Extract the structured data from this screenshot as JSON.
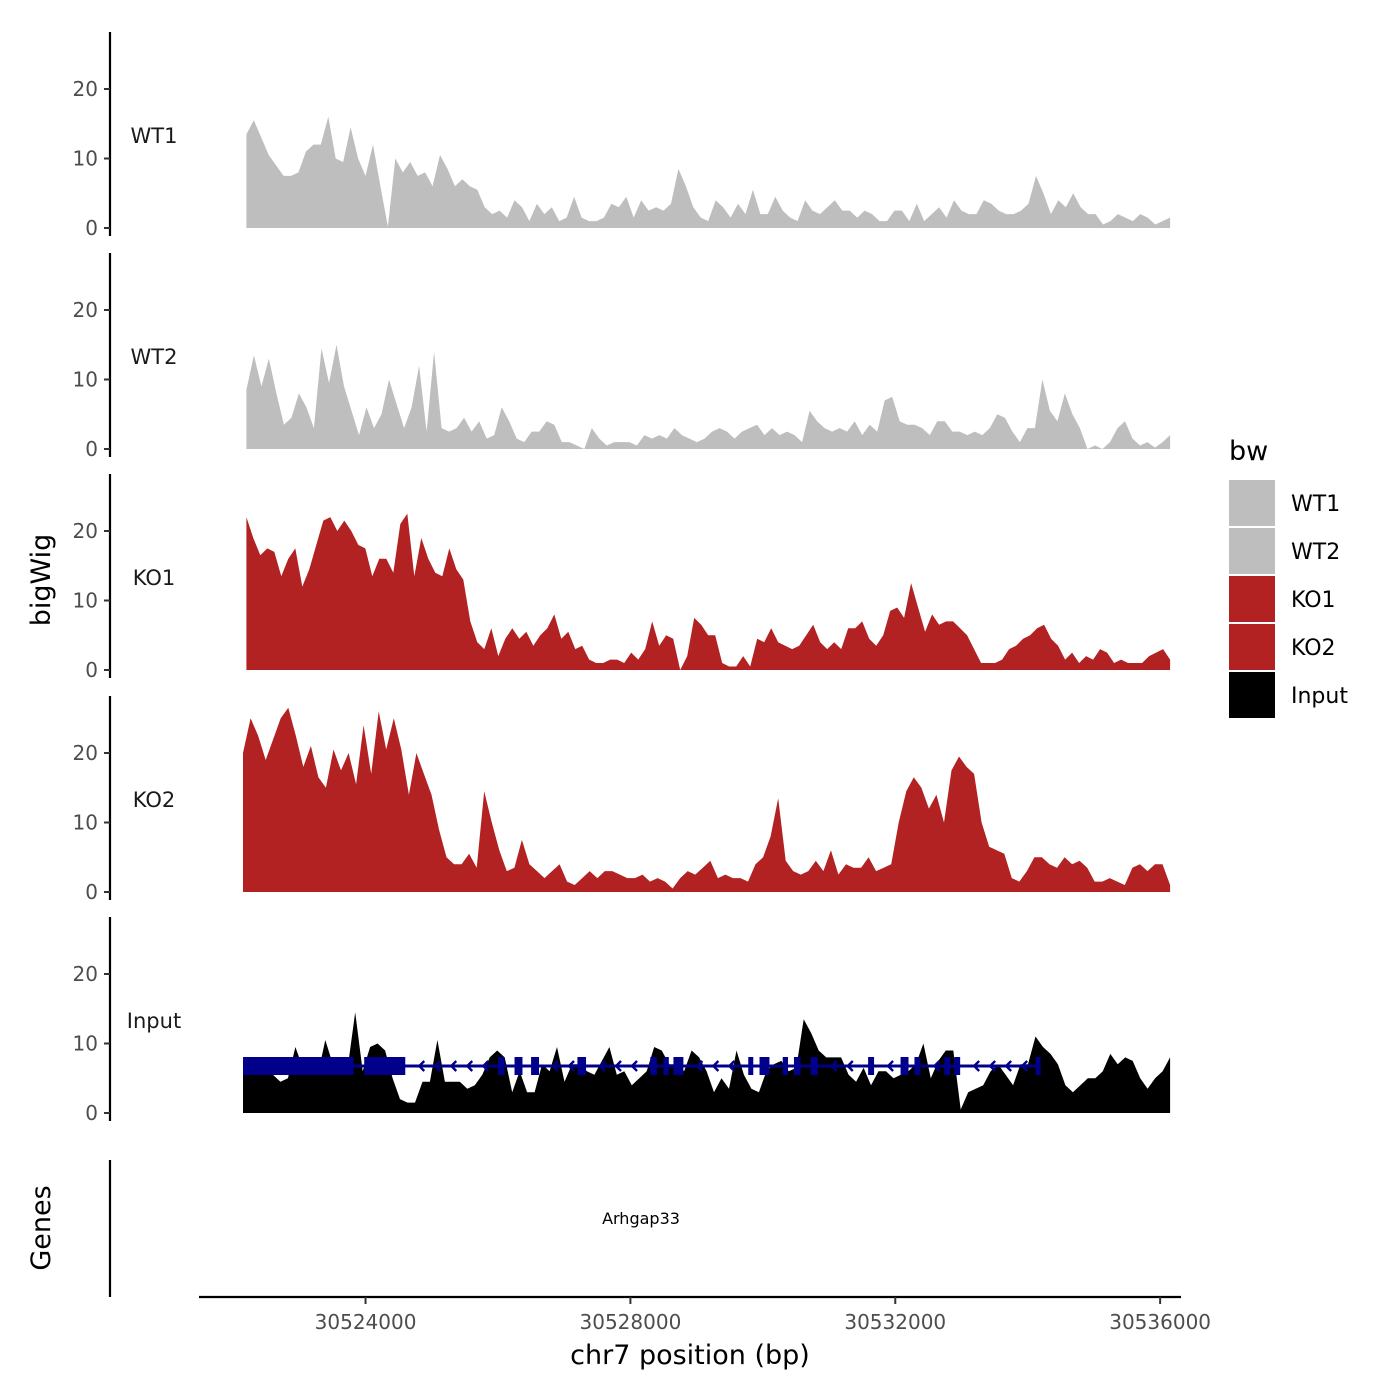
{
  "chart_data": {
    "type": "area",
    "chromosome": "chr7",
    "xlabel": "chr7 position (bp)",
    "ylabel": "bigWig",
    "genes_label": "Genes",
    "xlim": [
      30521500,
      30536300
    ],
    "data_x_range": [
      30522200,
      30536150
    ],
    "xticks": [
      30524000,
      30528000,
      30532000,
      30536000
    ],
    "xtick_labels": [
      "30524000",
      "30528000",
      "30532000",
      "30536000"
    ],
    "ylim": [
      0,
      28
    ],
    "yticks": [
      0,
      10,
      20
    ],
    "ytick_labels": [
      "0",
      "10",
      "20"
    ],
    "legend": {
      "title": "bw",
      "entries": [
        {
          "name": "WT1",
          "color": "#bebebe"
        },
        {
          "name": "WT2",
          "color": "#bebebe"
        },
        {
          "name": "KO1",
          "color": "#b22222"
        },
        {
          "name": "KO2",
          "color": "#b22222"
        },
        {
          "name": "Input",
          "color": "#000000"
        }
      ]
    },
    "series": [
      {
        "name": "WT1",
        "color": "#bebebe",
        "values": [
          13.5,
          15.5,
          13,
          10.5,
          9,
          7.5,
          7.5,
          8,
          11,
          12,
          12,
          16,
          10,
          9.5,
          14.5,
          10,
          7.5,
          12,
          6,
          0.2,
          10,
          8,
          9.5,
          7.5,
          8,
          6,
          10.5,
          8.5,
          6,
          7,
          6,
          5.5,
          3,
          2,
          2.5,
          1.5,
          4,
          3,
          1,
          3.5,
          2,
          3,
          1,
          1.5,
          4.5,
          1.5,
          1,
          1,
          1.5,
          3.5,
          3,
          4.5,
          1.5,
          4,
          2.5,
          3,
          2.5,
          3.5,
          8.5,
          6,
          3,
          1.5,
          1,
          4,
          3,
          1.5,
          3.5,
          2,
          5.5,
          2,
          2,
          4.5,
          2.5,
          1.5,
          1,
          4,
          2.5,
          2,
          3,
          4,
          2.5,
          2.5,
          1.5,
          2.5,
          2,
          1,
          1,
          2.5,
          2.5,
          1,
          3.5,
          1,
          2,
          3,
          1.5,
          4,
          2.5,
          2,
          2,
          4,
          3.5,
          2.5,
          2,
          2,
          2.5,
          3.5,
          7.5,
          5,
          2,
          4,
          3,
          5,
          3,
          2,
          2,
          0.5,
          1,
          2,
          1.5,
          1,
          2,
          1.5,
          0.5,
          1,
          1.5
        ],
        "x_start": 30522200,
        "x_end": 30536150
      },
      {
        "name": "WT2",
        "color": "#bebebe",
        "values": [
          8.5,
          13.5,
          9,
          13,
          8,
          3.5,
          4.5,
          8,
          6,
          3,
          14.5,
          9.5,
          15,
          9,
          5.5,
          2,
          6,
          3,
          5,
          10,
          6.5,
          3,
          6,
          12,
          2.5,
          14,
          3,
          2.5,
          3,
          4.5,
          2.5,
          4,
          1.5,
          2,
          6,
          4,
          1.5,
          1,
          2.5,
          2.5,
          4,
          3.5,
          1,
          1,
          0.5,
          0,
          3,
          1.5,
          0.5,
          1,
          1,
          1,
          0.5,
          2,
          1.5,
          2,
          1.5,
          3,
          2,
          1.5,
          1,
          1.5,
          2.5,
          3,
          2.5,
          1.5,
          2.5,
          3,
          3.5,
          2,
          3,
          2,
          2.5,
          2,
          1,
          5.5,
          4,
          3,
          2.5,
          3,
          2.5,
          4,
          2,
          3.5,
          2.5,
          7,
          7.5,
          4,
          3.5,
          3.5,
          3,
          2,
          4,
          4,
          2.5,
          2.5,
          2,
          2.5,
          2,
          3,
          5,
          4.5,
          2.5,
          1,
          3,
          3,
          10,
          5.5,
          4,
          8,
          5,
          3,
          0,
          0.5,
          0,
          1,
          3,
          4,
          1.5,
          0.5,
          1,
          0.2,
          1,
          2
        ],
        "x_start": 30522200,
        "x_end": 30536150
      },
      {
        "name": "KO1",
        "color": "#b22222",
        "values": [
          22,
          19,
          16.5,
          17.5,
          17,
          13.5,
          16,
          17.5,
          12,
          14.5,
          18,
          21.5,
          22,
          20,
          21.5,
          20,
          18,
          17.5,
          13.5,
          16,
          16,
          14,
          21,
          22.5,
          13.5,
          19,
          16,
          14,
          13.5,
          17.5,
          14.5,
          13,
          7,
          4,
          3,
          6,
          2,
          4.5,
          6,
          4.5,
          5.5,
          3.5,
          5,
          6,
          8,
          4.5,
          5.5,
          3,
          3.5,
          1.5,
          1,
          1,
          1.5,
          1.5,
          1,
          2.5,
          1.5,
          3,
          7,
          3.5,
          5,
          4.5,
          0,
          2,
          7.5,
          6.5,
          5,
          5,
          1,
          0.5,
          0.5,
          2,
          0.5,
          4.5,
          4,
          6,
          4,
          3.5,
          3,
          3.5,
          5,
          6.5,
          4,
          3,
          4,
          3,
          6,
          6,
          7,
          4.5,
          3.5,
          5,
          8.5,
          9,
          7.5,
          12.5,
          9,
          5.5,
          8,
          6.5,
          7,
          7,
          6,
          5,
          3,
          1,
          1,
          1,
          1.5,
          3,
          3.5,
          4.5,
          5,
          6,
          6.5,
          4.5,
          3.5,
          1.5,
          2.5,
          1,
          2,
          1.5,
          3,
          2.5,
          1,
          1.5,
          1,
          1,
          1,
          2,
          2.5,
          3,
          1.5
        ],
        "x_start": 30522200,
        "x_end": 30536150
      },
      {
        "name": "KO2",
        "color": "#b22222",
        "values": [
          20,
          25,
          22.5,
          19,
          22,
          25,
          26.5,
          22.5,
          18,
          21,
          16.5,
          15,
          20.5,
          17.5,
          20,
          15.5,
          24,
          17,
          26,
          20.5,
          25,
          20.5,
          14,
          20,
          17,
          14,
          9,
          5,
          4,
          4,
          5.5,
          3.5,
          14.5,
          10,
          6,
          3,
          3.5,
          7.5,
          4,
          3,
          2,
          3,
          4,
          1.5,
          1,
          2,
          3,
          2,
          3,
          3,
          2.5,
          2,
          2,
          2.5,
          1.5,
          2,
          1.5,
          0.5,
          2,
          3,
          2.5,
          3.5,
          4.5,
          2,
          2.5,
          2,
          2,
          1.5,
          4,
          5,
          8,
          13.5,
          4.5,
          3,
          2.5,
          3,
          4.5,
          3,
          6,
          2.5,
          4,
          3.5,
          3.5,
          5,
          3,
          3.5,
          4,
          10,
          14.5,
          16.5,
          15,
          12,
          14,
          10,
          17.5,
          19.5,
          18,
          17,
          10,
          6.5,
          6,
          5.5,
          2,
          1.5,
          3,
          5,
          5,
          4,
          3.5,
          5,
          4,
          4.5,
          3.5,
          1.5,
          1.5,
          2,
          1.5,
          1,
          3.5,
          4,
          3,
          4,
          4,
          1
        ],
        "x_start": 30522150,
        "x_end": 30536150
      },
      {
        "name": "Input",
        "color": "#000000",
        "values": [
          7.5,
          8,
          6.5,
          7.5,
          5.5,
          4.5,
          5,
          9.5,
          6.5,
          7.5,
          5.5,
          10.5,
          7,
          6.5,
          6.5,
          14.5,
          6,
          9.5,
          10,
          9,
          5,
          2,
          1.5,
          1.5,
          4.5,
          4.5,
          10.5,
          4.5,
          4.5,
          4.5,
          3.5,
          4,
          5.5,
          8,
          9,
          8,
          3,
          6,
          3,
          3,
          7,
          6,
          9.5,
          4.5,
          7,
          7,
          6,
          5.5,
          7.5,
          9.5,
          5.5,
          6,
          4,
          5,
          6,
          9.5,
          9,
          7,
          7,
          6,
          9,
          8,
          6,
          3,
          5,
          3.5,
          9,
          5.5,
          3.5,
          3,
          6,
          7,
          7.5,
          6,
          6.5,
          13.5,
          11.5,
          9,
          8,
          8,
          8,
          5.5,
          4.5,
          6.5,
          4,
          6,
          6,
          5,
          5.5,
          6,
          7,
          10,
          5,
          7.5,
          9,
          9,
          0.5,
          3,
          3.5,
          4,
          6,
          7,
          5.5,
          4,
          7,
          7,
          11,
          9.5,
          8.5,
          7,
          4,
          3,
          4,
          5,
          5,
          6,
          8.5,
          7,
          8,
          7.5,
          5,
          3.5,
          5,
          6,
          8
        ],
        "x_start": 30522150,
        "x_end": 30536150
      }
    ],
    "gene": {
      "name": "Arhgap33",
      "color": "#00008b",
      "strand": "-",
      "start": 30522150,
      "end": 30534170,
      "exons": [
        [
          30522150,
          30523820
        ],
        [
          30523980,
          30524600
        ],
        [
          30526000,
          30526100
        ],
        [
          30526250,
          30526370
        ],
        [
          30526500,
          30526620
        ],
        [
          30527200,
          30527330
        ],
        [
          30528300,
          30528400
        ],
        [
          30528500,
          30528580
        ],
        [
          30528650,
          30528800
        ],
        [
          30529780,
          30529850
        ],
        [
          30529950,
          30530100
        ],
        [
          30530300,
          30530380
        ],
        [
          30530470,
          30530570
        ],
        [
          30530720,
          30530830
        ],
        [
          30531590,
          30531680
        ],
        [
          30532080,
          30532200
        ],
        [
          30532290,
          30532380
        ],
        [
          30532740,
          30532830
        ],
        [
          30532890,
          30532980
        ],
        [
          30534120,
          30534170
        ]
      ]
    }
  }
}
